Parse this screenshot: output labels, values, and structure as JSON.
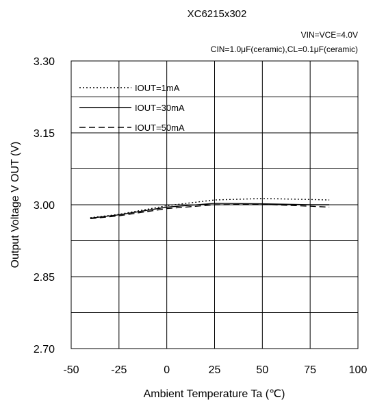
{
  "chart_data": {
    "type": "line",
    "title": "XC6215x302",
    "conditions": [
      "VIN=VCE=4.0V",
      "CIN=1.0μF(ceramic),CL=0.1μF(ceramic)"
    ],
    "xlabel": "Ambient Temperature Ta (℃)",
    "ylabel": "Output Voltage V OUT (V)",
    "xlim": [
      -50,
      100
    ],
    "ylim": [
      2.7,
      3.3
    ],
    "x_ticks": [
      "-50",
      "-25",
      "0",
      "25",
      "50",
      "75",
      "100"
    ],
    "y_ticks": [
      "3.30",
      "3.15",
      "3.00",
      "2.85",
      "2.70"
    ],
    "grid": true,
    "legend_position": "top-left",
    "x": [
      -40,
      -25,
      0,
      25,
      50,
      75,
      85
    ],
    "series": [
      {
        "name": "IOUT=1mA",
        "style": "dotted",
        "values": [
          2.973,
          2.98,
          2.998,
          3.01,
          3.013,
          3.011,
          3.01
        ]
      },
      {
        "name": "IOUT=30mA",
        "style": "solid",
        "values": [
          2.972,
          2.979,
          2.995,
          3.003,
          3.002,
          3.0,
          3.0
        ]
      },
      {
        "name": "IOUT=50mA",
        "style": "dashed",
        "values": [
          2.971,
          2.977,
          2.992,
          3.0,
          3.001,
          2.997,
          2.995
        ]
      }
    ]
  }
}
